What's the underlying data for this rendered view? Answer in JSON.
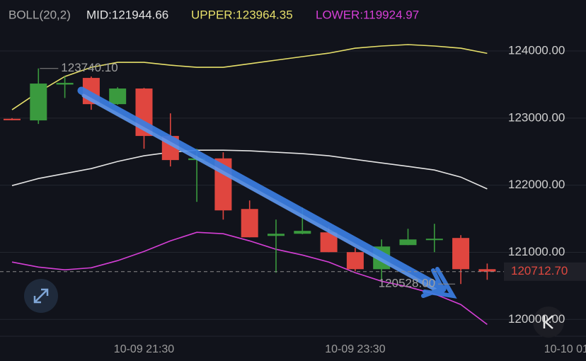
{
  "chart_data": {
    "type": "candlestick",
    "indicator": "BOLL(20,2)",
    "categories": [
      null,
      null,
      null,
      null,
      null,
      "10-09 21:30",
      null,
      null,
      null,
      null,
      null,
      null,
      null,
      "10-09 23:30",
      null,
      null,
      null,
      null,
      null,
      null,
      null,
      "10-10 01"
    ],
    "open": [
      122990,
      122966,
      123500,
      123599,
      123208,
      123441,
      122734,
      122375,
      122400,
      121646,
      121245,
      121277,
      121298,
      121003,
      120749,
      121108,
      121182,
      121214,
      120749,
      null,
      null,
      null
    ],
    "high": [
      123000,
      123740.1,
      123620,
      123620,
      123460,
      123450,
      123071,
      122544,
      122490,
      121773,
      121488,
      121668,
      121382,
      121066,
      121192,
      121351,
      121425,
      121256,
      120833,
      null,
      null,
      null
    ],
    "low": [
      122970,
      122913,
      123300,
      123124,
      123200,
      122544,
      122280,
      121752,
      121488,
      121224,
      120697,
      121270,
      121003,
      120717,
      120591,
      121108,
      121003,
      120528,
      120591,
      null,
      null,
      null
    ],
    "close": [
      122980,
      123515,
      123525,
      123208,
      123441,
      122734,
      122375,
      122400,
      121625,
      121224,
      121277,
      121320,
      121003,
      120749,
      121087,
      121192,
      121203,
      120749,
      120712.7,
      null,
      null,
      null
    ],
    "up_color": "#3a9a3e",
    "down_color": "#e0463f",
    "series": [
      {
        "name": "MID",
        "legend": "MID:121944.66",
        "color": "#e4e4e4",
        "values": [
          121995,
          122100,
          122174,
          122248,
          122354,
          122438,
          122491,
          122522,
          122522,
          122512,
          122491,
          122470,
          122438,
          122385,
          122332,
          122280,
          122227,
          122121,
          121944.66,
          null,
          null,
          null
        ]
      },
      {
        "name": "UPPER",
        "legend": "UPPER:123964.35",
        "color": "#e6df6a",
        "values": [
          123124,
          123388,
          123620,
          123757,
          123831,
          123831,
          123789,
          123757,
          123757,
          123810,
          123863,
          123916,
          123968,
          124042,
          124074,
          124095,
          124074,
          124042,
          123964.35,
          null,
          null,
          null
        ]
      },
      {
        "name": "LOWER",
        "legend": "LOWER:119924.97",
        "color": "#d53fd6",
        "values": [
          120855,
          120781,
          120739,
          120770,
          120876,
          121013,
          121171,
          121298,
          121277,
          121171,
          121045,
          120960,
          120855,
          120697,
          120570,
          120486,
          120380,
          120222,
          119924.97,
          null,
          null,
          null
        ]
      }
    ],
    "ylim": [
      119750,
      124760
    ],
    "yticks": [
      {
        "value": 120000,
        "label": "120000.00"
      },
      {
        "value": 121000,
        "label": "121000.00"
      },
      {
        "value": 122000,
        "label": "122000.00"
      },
      {
        "value": 123000,
        "label": "123000.00"
      },
      {
        "value": 124000,
        "label": "124000.00"
      }
    ],
    "grid": true,
    "last_price": {
      "value": 120712.7,
      "label": "120712.70",
      "color": "#e0483f"
    },
    "annotations": [
      {
        "value": 123740.1,
        "label": "123740.10",
        "index": 1
      },
      {
        "value": 120528,
        "label": "120528.00",
        "index": 17
      }
    ]
  }
}
